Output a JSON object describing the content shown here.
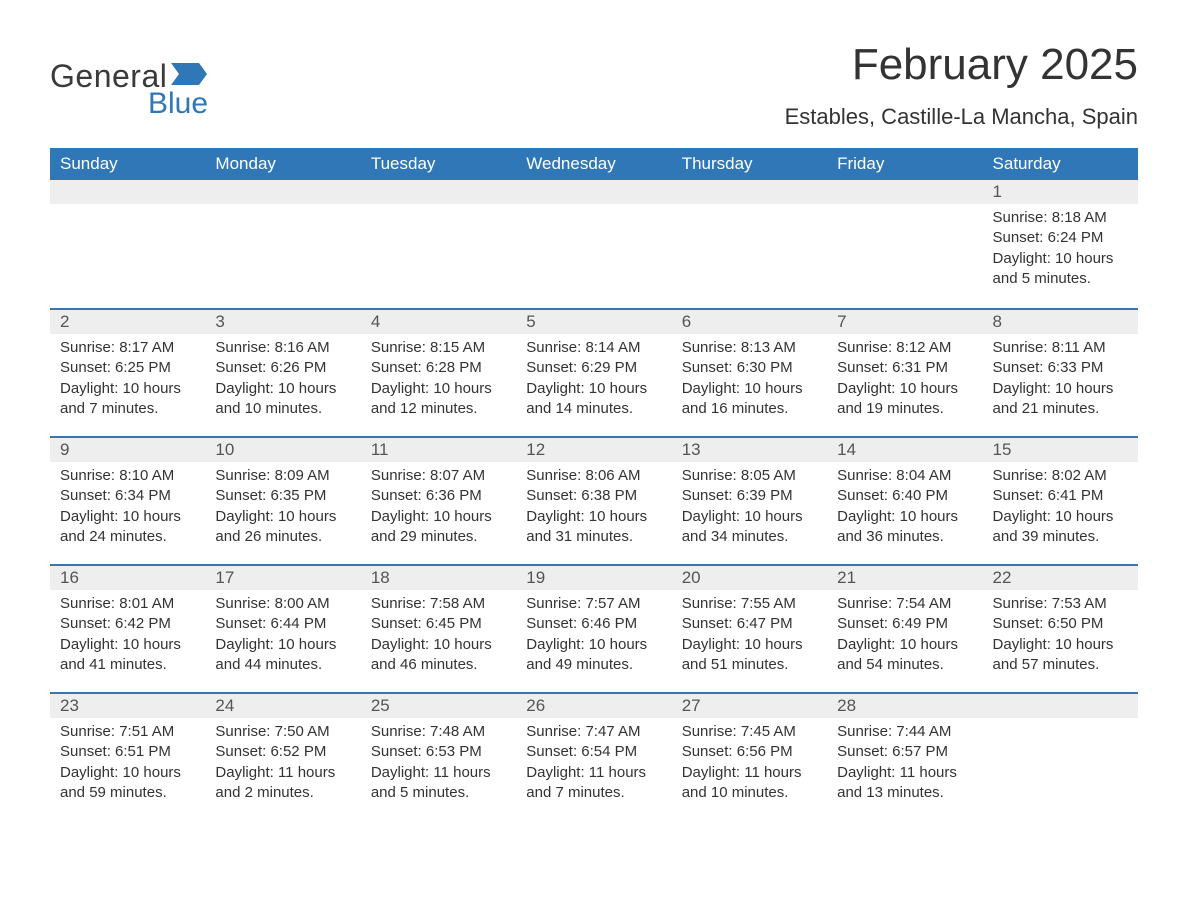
{
  "brand": {
    "general": "General",
    "blue": "Blue",
    "color": "#2f77b6"
  },
  "title": "February 2025",
  "location": "Estables, Castille-La Mancha, Spain",
  "weekdays": [
    "Sunday",
    "Monday",
    "Tuesday",
    "Wednesday",
    "Thursday",
    "Friday",
    "Saturday"
  ],
  "style": {
    "header_bg": "#2f77b6",
    "header_fg": "#ffffff",
    "dayrow_bg": "#eeeeee",
    "dayrow_border": "#2f77b6",
    "body_bg": "#ffffff",
    "text_color": "#333333",
    "title_fontsize": 44,
    "location_fontsize": 22,
    "weekday_fontsize": 17,
    "detail_fontsize": 15
  },
  "weeks": [
    [
      null,
      null,
      null,
      null,
      null,
      null,
      {
        "n": "1",
        "sr": "Sunrise: 8:18 AM",
        "ss": "Sunset: 6:24 PM",
        "dl": "Daylight: 10 hours and 5 minutes."
      }
    ],
    [
      {
        "n": "2",
        "sr": "Sunrise: 8:17 AM",
        "ss": "Sunset: 6:25 PM",
        "dl": "Daylight: 10 hours and 7 minutes."
      },
      {
        "n": "3",
        "sr": "Sunrise: 8:16 AM",
        "ss": "Sunset: 6:26 PM",
        "dl": "Daylight: 10 hours and 10 minutes."
      },
      {
        "n": "4",
        "sr": "Sunrise: 8:15 AM",
        "ss": "Sunset: 6:28 PM",
        "dl": "Daylight: 10 hours and 12 minutes."
      },
      {
        "n": "5",
        "sr": "Sunrise: 8:14 AM",
        "ss": "Sunset: 6:29 PM",
        "dl": "Daylight: 10 hours and 14 minutes."
      },
      {
        "n": "6",
        "sr": "Sunrise: 8:13 AM",
        "ss": "Sunset: 6:30 PM",
        "dl": "Daylight: 10 hours and 16 minutes."
      },
      {
        "n": "7",
        "sr": "Sunrise: 8:12 AM",
        "ss": "Sunset: 6:31 PM",
        "dl": "Daylight: 10 hours and 19 minutes."
      },
      {
        "n": "8",
        "sr": "Sunrise: 8:11 AM",
        "ss": "Sunset: 6:33 PM",
        "dl": "Daylight: 10 hours and 21 minutes."
      }
    ],
    [
      {
        "n": "9",
        "sr": "Sunrise: 8:10 AM",
        "ss": "Sunset: 6:34 PM",
        "dl": "Daylight: 10 hours and 24 minutes."
      },
      {
        "n": "10",
        "sr": "Sunrise: 8:09 AM",
        "ss": "Sunset: 6:35 PM",
        "dl": "Daylight: 10 hours and 26 minutes."
      },
      {
        "n": "11",
        "sr": "Sunrise: 8:07 AM",
        "ss": "Sunset: 6:36 PM",
        "dl": "Daylight: 10 hours and 29 minutes."
      },
      {
        "n": "12",
        "sr": "Sunrise: 8:06 AM",
        "ss": "Sunset: 6:38 PM",
        "dl": "Daylight: 10 hours and 31 minutes."
      },
      {
        "n": "13",
        "sr": "Sunrise: 8:05 AM",
        "ss": "Sunset: 6:39 PM",
        "dl": "Daylight: 10 hours and 34 minutes."
      },
      {
        "n": "14",
        "sr": "Sunrise: 8:04 AM",
        "ss": "Sunset: 6:40 PM",
        "dl": "Daylight: 10 hours and 36 minutes."
      },
      {
        "n": "15",
        "sr": "Sunrise: 8:02 AM",
        "ss": "Sunset: 6:41 PM",
        "dl": "Daylight: 10 hours and 39 minutes."
      }
    ],
    [
      {
        "n": "16",
        "sr": "Sunrise: 8:01 AM",
        "ss": "Sunset: 6:42 PM",
        "dl": "Daylight: 10 hours and 41 minutes."
      },
      {
        "n": "17",
        "sr": "Sunrise: 8:00 AM",
        "ss": "Sunset: 6:44 PM",
        "dl": "Daylight: 10 hours and 44 minutes."
      },
      {
        "n": "18",
        "sr": "Sunrise: 7:58 AM",
        "ss": "Sunset: 6:45 PM",
        "dl": "Daylight: 10 hours and 46 minutes."
      },
      {
        "n": "19",
        "sr": "Sunrise: 7:57 AM",
        "ss": "Sunset: 6:46 PM",
        "dl": "Daylight: 10 hours and 49 minutes."
      },
      {
        "n": "20",
        "sr": "Sunrise: 7:55 AM",
        "ss": "Sunset: 6:47 PM",
        "dl": "Daylight: 10 hours and 51 minutes."
      },
      {
        "n": "21",
        "sr": "Sunrise: 7:54 AM",
        "ss": "Sunset: 6:49 PM",
        "dl": "Daylight: 10 hours and 54 minutes."
      },
      {
        "n": "22",
        "sr": "Sunrise: 7:53 AM",
        "ss": "Sunset: 6:50 PM",
        "dl": "Daylight: 10 hours and 57 minutes."
      }
    ],
    [
      {
        "n": "23",
        "sr": "Sunrise: 7:51 AM",
        "ss": "Sunset: 6:51 PM",
        "dl": "Daylight: 10 hours and 59 minutes."
      },
      {
        "n": "24",
        "sr": "Sunrise: 7:50 AM",
        "ss": "Sunset: 6:52 PM",
        "dl": "Daylight: 11 hours and 2 minutes."
      },
      {
        "n": "25",
        "sr": "Sunrise: 7:48 AM",
        "ss": "Sunset: 6:53 PM",
        "dl": "Daylight: 11 hours and 5 minutes."
      },
      {
        "n": "26",
        "sr": "Sunrise: 7:47 AM",
        "ss": "Sunset: 6:54 PM",
        "dl": "Daylight: 11 hours and 7 minutes."
      },
      {
        "n": "27",
        "sr": "Sunrise: 7:45 AM",
        "ss": "Sunset: 6:56 PM",
        "dl": "Daylight: 11 hours and 10 minutes."
      },
      {
        "n": "28",
        "sr": "Sunrise: 7:44 AM",
        "ss": "Sunset: 6:57 PM",
        "dl": "Daylight: 11 hours and 13 minutes."
      },
      null
    ]
  ]
}
